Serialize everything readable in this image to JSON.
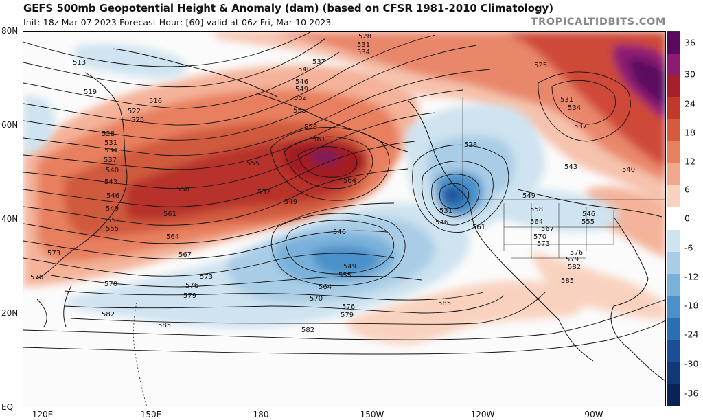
{
  "title": "GEFS 500mb Geopotential Height & Anomaly (dam) (based on CFSR 1981-2010 Climatology)",
  "subtitle": "Init: 18z Mar 07 2023   Forecast Hour: [60]   valid at 06z Fri, Mar 10 2023",
  "watermark": "TROPICALTIDBITS.COM",
  "latitude_labels": [
    "80N",
    "60N",
    "40N",
    "20N",
    "EQ"
  ],
  "longitude_labels": [
    "120E",
    "150E",
    "180",
    "150W",
    "120W",
    "90W"
  ],
  "colorbar": {
    "labels": [
      "36",
      "30",
      "24",
      "18",
      "12",
      "6",
      "0",
      "-6",
      "-12",
      "-18",
      "-24",
      "-30",
      "-36"
    ],
    "colors": [
      "#5a0a5e",
      "#8e1b73",
      "#a61f2a",
      "#c0392b",
      "#d65a3d",
      "#e8805e",
      "#f2a98b",
      "#f9d2bf",
      "#ffffff",
      "#cfe3f0",
      "#a9cde6",
      "#79b1da",
      "#4b91c9",
      "#2a6fb4",
      "#1b4f95",
      "#123877",
      "#0a2257"
    ]
  },
  "contours": {
    "height_labels": [
      "513",
      "516",
      "519",
      "522",
      "525",
      "528",
      "531",
      "534",
      "537",
      "540",
      "543",
      "546",
      "549",
      "552",
      "555",
      "558",
      "561",
      "564",
      "567",
      "570",
      "573",
      "576",
      "579",
      "582",
      "585"
    ],
    "placed_labels": [
      {
        "text": "513"
      },
      {
        "text": "516"
      },
      {
        "text": "519"
      },
      {
        "text": "522"
      },
      {
        "text": "525"
      },
      {
        "text": "528"
      },
      {
        "text": "531"
      },
      {
        "text": "534"
      },
      {
        "text": "537"
      },
      {
        "text": "540"
      },
      {
        "text": "543"
      },
      {
        "text": "546"
      },
      {
        "text": "549"
      },
      {
        "text": "552"
      },
      {
        "text": "555"
      },
      {
        "text": "573"
      },
      {
        "text": "576"
      },
      {
        "text": "528"
      },
      {
        "text": "531"
      },
      {
        "text": "534"
      },
      {
        "text": "537"
      },
      {
        "text": "540"
      },
      {
        "text": "546"
      },
      {
        "text": "549"
      },
      {
        "text": "552"
      },
      {
        "text": "555"
      },
      {
        "text": "558"
      },
      {
        "text": "561"
      },
      {
        "text": "555"
      },
      {
        "text": "552"
      },
      {
        "text": "549"
      },
      {
        "text": "564"
      },
      {
        "text": "558"
      },
      {
        "text": "561"
      },
      {
        "text": "564"
      },
      {
        "text": "567"
      },
      {
        "text": "573"
      },
      {
        "text": "570"
      },
      {
        "text": "576"
      },
      {
        "text": "579"
      },
      {
        "text": "582"
      },
      {
        "text": "585"
      },
      {
        "text": "546"
      },
      {
        "text": "549"
      },
      {
        "text": "555"
      },
      {
        "text": "564"
      },
      {
        "text": "570"
      },
      {
        "text": "576"
      },
      {
        "text": "579"
      },
      {
        "text": "582"
      },
      {
        "text": "585"
      },
      {
        "text": "528"
      },
      {
        "text": "531"
      },
      {
        "text": "546"
      },
      {
        "text": "525"
      },
      {
        "text": "531"
      },
      {
        "text": "534"
      },
      {
        "text": "537"
      },
      {
        "text": "540"
      },
      {
        "text": "543"
      },
      {
        "text": "549"
      },
      {
        "text": "561"
      },
      {
        "text": "558"
      },
      {
        "text": "564"
      },
      {
        "text": "567"
      },
      {
        "text": "570"
      },
      {
        "text": "573"
      },
      {
        "text": "546"
      },
      {
        "text": "555"
      },
      {
        "text": "576"
      },
      {
        "text": "579"
      },
      {
        "text": "582"
      },
      {
        "text": "585"
      }
    ]
  }
}
